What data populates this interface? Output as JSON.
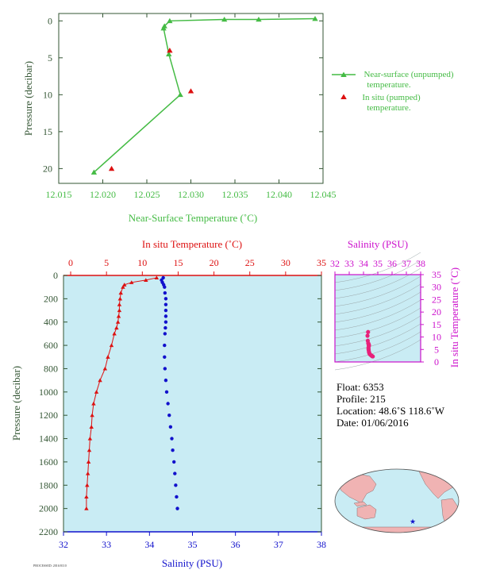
{
  "colors": {
    "green": "#44bb44",
    "red": "#dd1111",
    "blue": "#1111cc",
    "magenta": "#cc11cc",
    "axis_text": "#335533",
    "panel_bg": "#c9ecf4"
  },
  "chart_data": [
    {
      "type": "line",
      "xlabel": "Near-Surface Temperature (˚C)",
      "ylabel": "Pressure (decibar)",
      "xlim": [
        12.015,
        12.045
      ],
      "ylim": [
        22,
        -1
      ],
      "xticks": [
        12.015,
        12.02,
        12.025,
        12.03,
        12.035,
        12.04,
        12.045
      ],
      "yticks": [
        0,
        5,
        10,
        15,
        20
      ],
      "legend": [
        "Near-surface (unpumped) temperature.",
        "In situ (pumped) temperature."
      ],
      "legend_placement": "right",
      "series": [
        {
          "name": "Near-surface (unpumped) temperature.",
          "x": [
            12.0441,
            12.0377,
            12.0338,
            12.0276,
            12.027,
            12.0269,
            12.0275,
            12.0288,
            12.019
          ],
          "y": [
            -0.3,
            -0.2,
            -0.2,
            0.0,
            0.7,
            1.0,
            4.5,
            10.0,
            20.5
          ]
        },
        {
          "name": "In situ (pumped) temperature.",
          "x": [
            12.0276,
            12.03,
            12.021
          ],
          "y": [
            4.0,
            9.5,
            20.0
          ]
        }
      ]
    },
    {
      "type": "line",
      "top_axis_label": "In situ Temperature (˚C)",
      "bottom_axis_label": "Salinity (PSU)",
      "ylabel": "Pressure (decibar)",
      "temp_lim": [
        -1,
        35
      ],
      "sal_lim": [
        32,
        38
      ],
      "ylim": [
        2200,
        0
      ],
      "temp_ticks": [
        0,
        5,
        10,
        15,
        20,
        25,
        30,
        35
      ],
      "sal_ticks": [
        32,
        33,
        34,
        35,
        36,
        37,
        38
      ],
      "yticks": [
        0,
        200,
        400,
        600,
        800,
        1000,
        1200,
        1400,
        1600,
        1800,
        2000,
        2200
      ],
      "series": [
        {
          "name": "temperature",
          "p": [
            20,
            40,
            60,
            80,
            100,
            150,
            200,
            250,
            300,
            350,
            400,
            450,
            500,
            600,
            700,
            800,
            900,
            1000,
            1100,
            1200,
            1300,
            1400,
            1500,
            1600,
            1700,
            1800,
            1900,
            2000
          ],
          "v": [
            12.0,
            10.5,
            8.5,
            7.5,
            7.3,
            7.0,
            6.9,
            6.8,
            6.8,
            6.7,
            6.6,
            6.4,
            6.1,
            5.7,
            5.2,
            4.8,
            4.1,
            3.6,
            3.2,
            3.0,
            2.9,
            2.7,
            2.6,
            2.5,
            2.4,
            2.3,
            2.2,
            2.2
          ]
        },
        {
          "name": "salinity",
          "p": [
            20,
            40,
            60,
            80,
            100,
            150,
            200,
            250,
            300,
            350,
            400,
            450,
            500,
            600,
            700,
            800,
            900,
            1000,
            1100,
            1200,
            1300,
            1400,
            1500,
            1600,
            1700,
            1800,
            1900,
            2000
          ],
          "v": [
            34.32,
            34.28,
            34.3,
            34.33,
            34.35,
            34.36,
            34.38,
            34.38,
            34.38,
            34.38,
            34.38,
            34.37,
            34.36,
            34.35,
            34.35,
            34.36,
            34.38,
            34.4,
            34.43,
            34.46,
            34.49,
            34.52,
            34.54,
            34.57,
            34.59,
            34.61,
            34.63,
            34.65
          ]
        }
      ]
    },
    {
      "type": "scatter",
      "xlabel": "Salinity (PSU)",
      "ylabel": "In situ Temperature (˚C)",
      "xlim": [
        32,
        38
      ],
      "ylim": [
        0,
        35
      ],
      "xticks": [
        32,
        33,
        34,
        35,
        36,
        37,
        38
      ],
      "yticks": [
        0,
        5,
        10,
        15,
        20,
        25,
        30,
        35
      ],
      "series": [
        {
          "name": "TS",
          "x": [
            34.32,
            34.28,
            34.3,
            34.33,
            34.35,
            34.36,
            34.38,
            34.38,
            34.37,
            34.35,
            34.35,
            34.36,
            34.38,
            34.4,
            34.43,
            34.46,
            34.52,
            34.57,
            34.61,
            34.65
          ],
          "y": [
            12.0,
            10.5,
            8.5,
            7.5,
            7.3,
            7.0,
            6.8,
            6.6,
            6.4,
            5.7,
            5.2,
            4.8,
            4.1,
            3.6,
            3.2,
            3.0,
            2.7,
            2.5,
            2.3,
            2.2
          ]
        }
      ]
    }
  ],
  "float_info": {
    "float": "Float:  6353",
    "profile": "Profile:  215",
    "location": "Location:  48.6˚S  118.6˚W",
    "date": "Date:  01/06/2016"
  },
  "map": {
    "marker_lat": -48.6,
    "marker_lon": -118.6
  },
  "footer": "PROCESSED: 2016/0110"
}
